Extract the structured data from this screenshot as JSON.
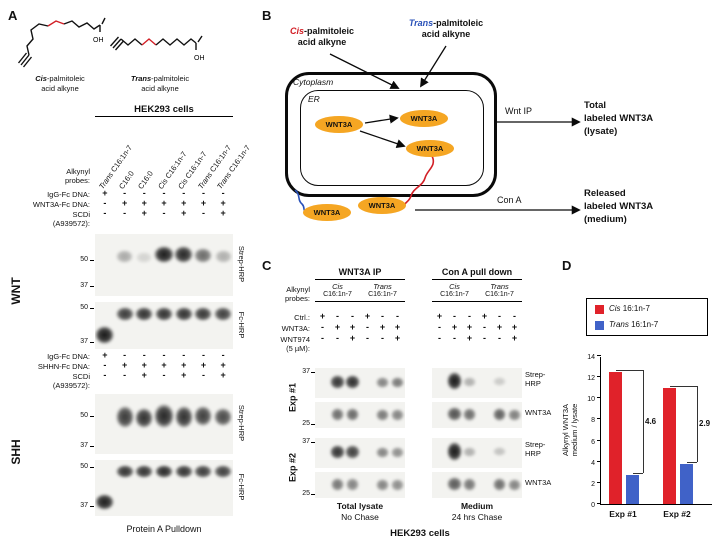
{
  "mw": {
    "m50": "50",
    "m37": "37",
    "m25": "25"
  },
  "panelA": {
    "label": "A",
    "cis_structure": {
      "pre": "Cis",
      "rest": "-palmitoleic",
      "line2": "acid alkyne",
      "oh": "OH"
    },
    "trans_structure": {
      "pre": "Trans",
      "rest": "-palmitoleic",
      "line2": "acid alkyne",
      "oh": "OH"
    },
    "header": "HEK293 cells",
    "alkynyl_line1": "Alkynyl",
    "alkynyl_line2": "probes:",
    "lane_labels": [
      {
        "pre": "Trans",
        "rest": " C16:1n-7"
      },
      {
        "pre": "",
        "rest": "C16:0"
      },
      {
        "pre": "",
        "rest": "C16:0"
      },
      {
        "pre": "Cis",
        "rest": " C16:1n-7"
      },
      {
        "pre": "Cis",
        "rest": " C16:1n-7"
      },
      {
        "pre": "Trans",
        "rest": " C16:1n-7"
      },
      {
        "pre": "Trans",
        "rest": " C16:1n-7"
      }
    ],
    "wnt": {
      "section": "WNT",
      "rows": [
        {
          "label": "IgG-Fc DNA:",
          "values": [
            "+",
            "-",
            "-",
            "-",
            "-",
            "-",
            "-"
          ]
        },
        {
          "label": "WNT3A-Fc DNA:",
          "values": [
            "-",
            "+",
            "+",
            "+",
            "+",
            "+",
            "+"
          ]
        },
        {
          "label": "SCDi",
          "values": [
            "-",
            "-",
            "+",
            "-",
            "+",
            "-",
            "+"
          ]
        }
      ],
      "scdi_line2": "(A939572):"
    },
    "shh": {
      "section": "SHH",
      "rows": [
        {
          "label": "IgG-Fc DNA:",
          "values": [
            "+",
            "-",
            "-",
            "-",
            "-",
            "-",
            "-"
          ]
        },
        {
          "label": "SHHN-Fc DNA:",
          "values": [
            "-",
            "+",
            "+",
            "+",
            "+",
            "+",
            "+"
          ]
        },
        {
          "label": "SCDi",
          "values": [
            "-",
            "-",
            "+",
            "-",
            "+",
            "-",
            "+"
          ]
        }
      ],
      "scdi_line2": "(A939572):"
    },
    "strep_label": "Strep-HRP",
    "fc_label": "Fc-HRP",
    "caption": "Protein A Pulldown"
  },
  "panelB": {
    "label": "B",
    "cis_probe": {
      "pre": "Cis",
      "rest": "-palmitoleic",
      "line2": "acid alkyne"
    },
    "trans_probe": {
      "pre": "Trans",
      "rest": "-palmitoleic",
      "line2": "acid alkyne"
    },
    "cytoplasm": "Cytoplasm",
    "er": "ER",
    "wnt3a": "WNT3A",
    "wnt_ip": "Wnt IP",
    "con_a": "Con A",
    "total": {
      "line1": "Total",
      "line2": "labeled WNT3A",
      "line3": "(lysate)"
    },
    "released": {
      "line1": "Released",
      "line2": "labeled WNT3A",
      "line3": "(medium)"
    }
  },
  "panelC": {
    "label": "C",
    "header_left": "WNT3A IP",
    "header_right": "Con A pull down",
    "alkynyl_line1": "Alkynyl",
    "alkynyl_line2": "probes:",
    "probes": [
      {
        "pre": "Cis",
        "name": "C16:1n-7"
      },
      {
        "pre": "Trans",
        "name": "C16:1n-7"
      },
      {
        "pre": "Cis",
        "name": "C16:1n-7"
      },
      {
        "pre": "Trans",
        "name": "C16:1n-7"
      }
    ],
    "rows": [
      {
        "label": "Ctrl.:",
        "left": [
          "+",
          "-",
          "-",
          "+",
          "-",
          "-"
        ],
        "right": [
          "+",
          "-",
          "-",
          "+",
          "-",
          "-"
        ]
      },
      {
        "label": "WNT3A:",
        "left": [
          "-",
          "+",
          "+",
          "-",
          "+",
          "+"
        ],
        "right": [
          "-",
          "+",
          "+",
          "-",
          "+",
          "+"
        ]
      },
      {
        "label": "WNT974",
        "left": [
          "-",
          "-",
          "+",
          "-",
          "-",
          "+"
        ],
        "right": [
          "-",
          "-",
          "+",
          "-",
          "-",
          "+"
        ]
      }
    ],
    "wnt974_line2": "(5 µM):",
    "exp1": "Exp #1",
    "exp2": "Exp #2",
    "strep_line1": "Strep-",
    "strep_line2": "HRP",
    "wnt3a_label": "WNT3A",
    "lysate_title": "Total lysate",
    "lysate_sub": "No Chase",
    "medium_title": "Medium",
    "medium_sub": "24 hrs Chase",
    "footer": "HEK293 cells"
  },
  "panelD": {
    "label": "D",
    "ylabel_line1": "Alkynyl WNT3A",
    "ylabel_line2": "medium / lysate"
  },
  "chart_data": {
    "type": "bar",
    "categories": [
      "Exp #1",
      "Exp #2"
    ],
    "series": [
      {
        "pre": "Cis",
        "rest": " 16:1n-7",
        "name": "Cis 16:1n-7",
        "color": "#e0222a",
        "values": [
          12.5,
          11.0
        ]
      },
      {
        "pre": "Trans",
        "rest": " 16:1n-7",
        "name": "Trans 16:1n-7",
        "color": "#4062c8",
        "values": [
          2.7,
          3.8
        ]
      }
    ],
    "annotations": [
      "4.6",
      "2.9"
    ],
    "title": "",
    "xlabel": "",
    "ylabel": "Alkynyl WNT3A medium / lysate",
    "ylim": [
      0,
      14
    ],
    "yticks": [
      0,
      2,
      4,
      6,
      8,
      10,
      12,
      14
    ],
    "grid": false,
    "legend_position": "top-right"
  },
  "blots": {
    "a_wnt_strep": {
      "lanes": 7,
      "bands": [
        [
          1,
          16,
          13,
          0.32,
          0.95
        ],
        [
          2,
          18,
          11,
          0.14,
          0.9
        ],
        [
          3,
          12,
          17,
          0.95,
          1.05
        ],
        [
          4,
          12,
          17,
          0.9,
          1.05
        ],
        [
          5,
          14,
          15,
          0.6,
          1
        ],
        [
          6,
          16,
          13,
          0.3,
          0.95
        ]
      ]
    },
    "a_wnt_fc": {
      "lanes": 7,
      "bands": [
        [
          0,
          24,
          18,
          0.97,
          1.05
        ],
        [
          1,
          5,
          14,
          0.82,
          1
        ],
        [
          2,
          5,
          14,
          0.86,
          1
        ],
        [
          3,
          5,
          14,
          0.86,
          1
        ],
        [
          4,
          5,
          14,
          0.86,
          1
        ],
        [
          5,
          5,
          14,
          0.84,
          1
        ],
        [
          6,
          5,
          14,
          0.8,
          1
        ]
      ]
    },
    "a_shh_strep": {
      "lanes": 7,
      "bands": [
        [
          1,
          12,
          22,
          0.82,
          1
        ],
        [
          2,
          14,
          20,
          0.86,
          1
        ],
        [
          3,
          10,
          24,
          0.9,
          1.05
        ],
        [
          4,
          12,
          22,
          0.86,
          1
        ],
        [
          5,
          12,
          20,
          0.8,
          1
        ],
        [
          6,
          14,
          18,
          0.75,
          1
        ]
      ]
    },
    "a_shh_fc": {
      "lanes": 7,
      "bands": [
        [
          0,
          34,
          16,
          0.95,
          1.05
        ],
        [
          1,
          5,
          13,
          0.86,
          1
        ],
        [
          2,
          5,
          13,
          0.86,
          1
        ],
        [
          3,
          5,
          13,
          0.9,
          1
        ],
        [
          4,
          5,
          13,
          0.86,
          1
        ],
        [
          5,
          5,
          13,
          0.82,
          1
        ],
        [
          6,
          5,
          13,
          0.8,
          1
        ]
      ]
    },
    "c1_lys_strep": {
      "lanes": 6,
      "bands": [
        [
          1,
          7,
          14,
          0.85,
          1.05
        ],
        [
          2,
          7,
          14,
          0.88,
          1.05
        ],
        [
          4,
          9,
          11,
          0.5,
          1
        ],
        [
          5,
          9,
          11,
          0.55,
          1
        ]
      ]
    },
    "c1_med_strep": {
      "lanes": 6,
      "bands": [
        [
          1,
          4,
          18,
          0.97,
          1.15
        ],
        [
          2,
          9,
          10,
          0.3,
          0.9
        ],
        [
          4,
          9,
          9,
          0.18,
          0.9
        ]
      ]
    },
    "c1_lys_wnt": {
      "lanes": 6,
      "bands": [
        [
          1,
          6,
          13,
          0.6,
          1
        ],
        [
          2,
          6,
          13,
          0.62,
          1
        ],
        [
          4,
          7,
          12,
          0.55,
          1
        ],
        [
          5,
          7,
          12,
          0.5,
          1
        ]
      ]
    },
    "c1_med_wnt": {
      "lanes": 6,
      "bands": [
        [
          1,
          5,
          14,
          0.72,
          1.05
        ],
        [
          2,
          6,
          13,
          0.6,
          1
        ],
        [
          4,
          6,
          13,
          0.66,
          1
        ],
        [
          5,
          7,
          12,
          0.52,
          1
        ]
      ]
    },
    "c2_lys_strep": {
      "lanes": 6,
      "bands": [
        [
          1,
          7,
          14,
          0.86,
          1.05
        ],
        [
          2,
          7,
          14,
          0.8,
          1.05
        ],
        [
          4,
          9,
          11,
          0.5,
          1
        ],
        [
          5,
          9,
          11,
          0.45,
          1
        ]
      ]
    },
    "c2_med_strep": {
      "lanes": 6,
      "bands": [
        [
          1,
          4,
          19,
          0.97,
          1.15
        ],
        [
          2,
          9,
          10,
          0.3,
          0.9
        ],
        [
          4,
          9,
          9,
          0.22,
          0.9
        ]
      ]
    },
    "c2_lys_wnt": {
      "lanes": 6,
      "bands": [
        [
          1,
          6,
          13,
          0.56,
          1
        ],
        [
          2,
          6,
          13,
          0.5,
          1
        ],
        [
          4,
          7,
          12,
          0.5,
          1
        ],
        [
          5,
          7,
          12,
          0.46,
          1
        ]
      ]
    },
    "c2_med_wnt": {
      "lanes": 6,
      "bands": [
        [
          1,
          5,
          14,
          0.68,
          1.05
        ],
        [
          2,
          6,
          13,
          0.56,
          1
        ],
        [
          4,
          6,
          13,
          0.6,
          1
        ],
        [
          5,
          7,
          12,
          0.5,
          1
        ]
      ]
    }
  }
}
